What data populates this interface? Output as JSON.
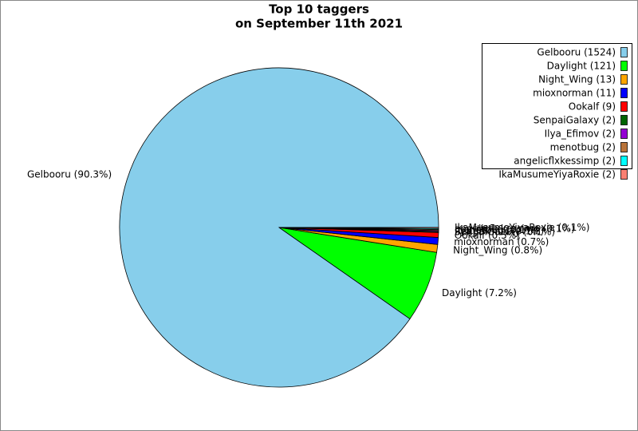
{
  "chart_data": {
    "type": "pie",
    "title_lines": [
      "Top 10 taggers",
      "on September 11th 2021"
    ],
    "categories": [
      "Gelbooru (1524)",
      "Daylight (121)",
      "Night_Wing (13)",
      "mioxnorman (11)",
      "Ookalf (9)",
      "SenpaiGalaxy (2)",
      "Ilya_Efimov (2)",
      "menotbug (2)",
      "angelicflxkessimp (2)",
      "IkaMusumeYiyaRoxie (2)"
    ],
    "values": [
      90.3,
      7.2,
      0.8,
      0.7,
      0.5,
      0.1,
      0.1,
      0.1,
      0.1,
      0.1
    ],
    "value_labels": [
      "Gelbooru (90.3%)",
      "Daylight (7.2%)",
      "Night_Wing (0.8%)",
      "mioxnorman (0.7%)",
      "Ookalf (0.5%)",
      "SenpaiGalaxy (0.1%)",
      "Ilya_Efimov (0.1%)",
      "menotbug (0.1%)",
      "angelicflxkessimp (0.1%)",
      "IkaMusumeYiyaRoxie (0.1%)"
    ],
    "colors": [
      "#87ceeb",
      "#00ff00",
      "#ffa500",
      "#0000ff",
      "#ff0000",
      "#006400",
      "#9400d3",
      "#b8733a",
      "#00ffff",
      "#fa8072"
    ],
    "legend_position": "upper right"
  }
}
